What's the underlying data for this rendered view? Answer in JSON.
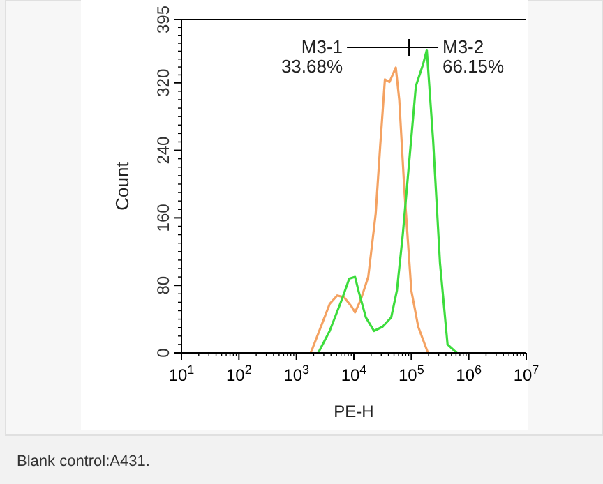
{
  "chart_data": {
    "type": "line",
    "xlabel": "PE-H",
    "ylabel": "Count",
    "log": "x",
    "xlim": [
      10,
      10000000
    ],
    "xticks": [
      {
        "value": 10,
        "label": "10$^{1}$"
      },
      {
        "value": 100,
        "label": "10$^{2}$"
      },
      {
        "value": 1000,
        "label": "10$^{3}$"
      },
      {
        "value": 10000,
        "label": "10$^{4}$"
      },
      {
        "value": 100000,
        "label": "10$^{5}$"
      },
      {
        "value": 1000000,
        "label": "10$^{6}$"
      },
      {
        "value": 10000000,
        "label": "10$^{7}$"
      }
    ],
    "ylim": [
      0,
      395
    ],
    "yticks": [
      0,
      80,
      160,
      240,
      320,
      395
    ],
    "grid": false,
    "marker": "none",
    "series": [
      {
        "color": "#f4a262",
        "x": [
          1780,
          3800,
          5130,
          6760,
          9120,
          10500,
          13200,
          17800,
          24000,
          28800,
          34700,
          41700,
          53700,
          61700,
          75900,
          100000,
          132000,
          195000
        ],
        "values": [
          0,
          58,
          68,
          66,
          55,
          48,
          63,
          90,
          165,
          246,
          324,
          321,
          338,
          300,
          192,
          74,
          31,
          0
        ]
      },
      {
        "color": "#3ddc3d",
        "x": [
          2400,
          3800,
          6170,
          8320,
          10500,
          12000,
          16200,
          22400,
          31600,
          44700,
          56200,
          70800,
          91200,
          120000,
          162000,
          186000,
          240000,
          316000,
          427000,
          617000
        ],
        "values": [
          0,
          26,
          63,
          88,
          90,
          74,
          42,
          26,
          31,
          42,
          74,
          139,
          224,
          316,
          343,
          359,
          251,
          106,
          10,
          0
        ]
      }
    ],
    "annotations": [
      "M3-1\n33.68%",
      "M3-2\n66.15%",
      "Blank control:A431."
    ]
  }
}
